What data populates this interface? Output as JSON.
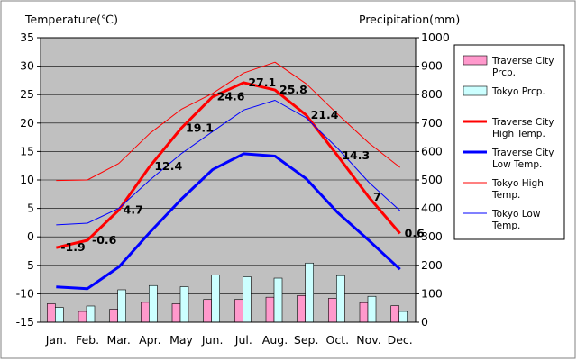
{
  "chart_data": {
    "type": "bar+line",
    "title": "",
    "ylabel_left": "Temperature(℃)",
    "ylabel_right": "Precipitation(mm)",
    "ylim_left": [
      -15,
      35
    ],
    "ylim_right": [
      0,
      1000
    ],
    "yticks_left": [
      -15,
      -10,
      -5,
      0,
      5,
      10,
      15,
      20,
      25,
      30,
      35
    ],
    "yticks_right": [
      0,
      100,
      200,
      300,
      400,
      500,
      600,
      700,
      800,
      900,
      1000
    ],
    "categories": [
      "Jan.",
      "Feb.",
      "Mar.",
      "Apr.",
      "May",
      "Jun.",
      "Jul.",
      "Aug.",
      "Sep.",
      "Oct.",
      "Nov.",
      "Dec."
    ],
    "grid": true,
    "legend_position": "right",
    "bar_series": [
      {
        "name": "Traverse City Prcp.",
        "color": "#ff99cc",
        "values": [
          65,
          38,
          46,
          70,
          65,
          80,
          80,
          88,
          94,
          84,
          69,
          58
        ]
      },
      {
        "name": "Tokyo Prcp.",
        "color": "#ccffff",
        "values": [
          52,
          57,
          114,
          129,
          125,
          166,
          160,
          155,
          208,
          164,
          91,
          38
        ]
      }
    ],
    "line_series": [
      {
        "name": "Traverse City High Temp.",
        "color": "#ff0000",
        "width": 3,
        "values": [
          -1.9,
          -0.6,
          4.7,
          12.4,
          19.1,
          24.6,
          27.1,
          25.8,
          21.4,
          14.3,
          7.0,
          0.6
        ]
      },
      {
        "name": "Traverse City Low Temp.",
        "color": "#0000ff",
        "width": 3,
        "values": [
          -8.8,
          -9.1,
          -5.3,
          0.8,
          6.6,
          11.8,
          14.6,
          14.2,
          10.2,
          4.3,
          -0.6,
          -5.7
        ]
      },
      {
        "name": "Tokyo High Temp.",
        "color": "#ff0000",
        "width": 1,
        "values": [
          9.9,
          10.0,
          12.9,
          18.2,
          22.4,
          25.2,
          28.8,
          30.7,
          26.9,
          21.6,
          16.5,
          12.2
        ]
      },
      {
        "name": "Tokyo Low Temp.",
        "color": "#0000ff",
        "width": 1,
        "values": [
          2.1,
          2.4,
          5.0,
          10.0,
          14.6,
          18.5,
          22.3,
          24.0,
          20.9,
          15.6,
          9.6,
          4.6
        ]
      }
    ],
    "data_labels": {
      "series": "Traverse City High Temp.",
      "text": [
        "-1.9",
        "-0.6",
        "4.7",
        "12.4",
        "19.1",
        "24.6",
        "27.1",
        "25.8",
        "21.4",
        "14.3",
        "7",
        "0.6"
      ]
    },
    "legend": [
      {
        "kind": "bar",
        "color": "#ff99cc",
        "line1": "Traverse City",
        "line2": "Prcp."
      },
      {
        "kind": "bar",
        "color": "#ccffff",
        "line1": "Tokyo Prcp.",
        "line2": ""
      },
      {
        "kind": "line",
        "color": "#ff0000",
        "width": 3,
        "line1": "Traverse City",
        "line2": "High Temp."
      },
      {
        "kind": "line",
        "color": "#0000ff",
        "width": 3,
        "line1": "Traverse City",
        "line2": "Low Temp."
      },
      {
        "kind": "line",
        "color": "#ff0000",
        "width": 1,
        "line1": "Tokyo High",
        "line2": "Temp."
      },
      {
        "kind": "line",
        "color": "#0000ff",
        "width": 1,
        "line1": "Tokyo Low",
        "line2": "Temp."
      }
    ],
    "colors": {
      "plot_bg": "#c0c0c0",
      "grid": "#000000",
      "frame": "#000000"
    }
  }
}
